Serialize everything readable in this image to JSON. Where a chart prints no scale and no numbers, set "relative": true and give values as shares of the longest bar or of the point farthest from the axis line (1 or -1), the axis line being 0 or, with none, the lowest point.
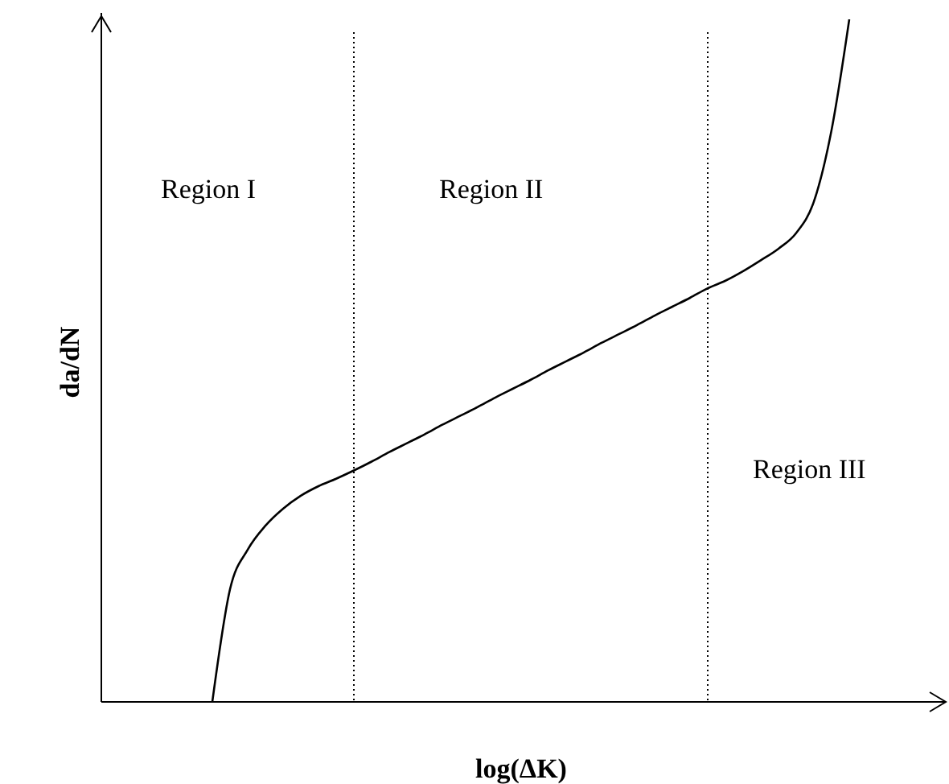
{
  "chart_data": {
    "type": "line",
    "relative": true,
    "xlabel": "log(ΔK)",
    "ylabel": "da/dN",
    "categories": [
      null,
      null,
      null,
      null,
      null,
      null,
      null,
      null,
      null,
      null,
      null,
      null,
      null,
      null,
      null,
      null,
      null,
      null,
      null,
      null,
      null,
      null,
      null,
      null,
      null,
      null,
      null,
      null,
      null,
      null,
      null,
      null,
      null,
      null,
      null,
      null,
      null
    ],
    "series": [
      {
        "color": "#000000",
        "values": [
          0,
          0.165,
          0.223,
          0.258,
          0.283,
          0.302,
          0.316,
          0.327,
          0.339,
          0.352,
          0.366,
          0.379,
          0.392,
          0.406,
          0.419,
          0.432,
          0.446,
          0.459,
          0.472,
          0.486,
          0.499,
          0.512,
          0.526,
          0.539,
          0.552,
          0.566,
          0.579,
          0.592,
          0.606,
          0.617,
          0.631,
          0.647,
          0.664,
          0.687,
          0.733,
          0.838,
          1
        ]
      }
    ],
    "annotations": [
      "Region I",
      "Region II",
      "Region III"
    ]
  }
}
